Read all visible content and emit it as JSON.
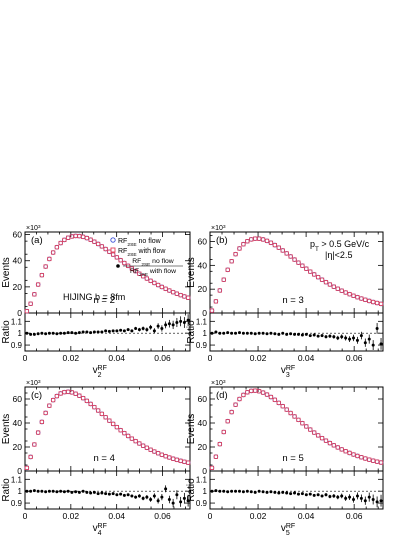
{
  "chart_data": [
    {
      "type": "scatter",
      "panel_label": "(a)",
      "n_label": "n = 2",
      "annotation": "HIJING b = 8fm",
      "legend": {
        "rf2se_noflow": "RF",
        "rf2se_noflow_sub": "2SE",
        "rf2se_noflow_tail": " no flow",
        "rf2se_withflow": "RF",
        "rf2se_withflow_sub": "2SE",
        "rf2se_withflow_tail": " with flow",
        "ratio_entry_top_main": "RF",
        "ratio_entry_top_sub": "2SE",
        "ratio_entry_top_tail": " no flow",
        "ratio_entry_bottom_main": "RF",
        "ratio_entry_bottom_sub": "2SE",
        "ratio_entry_bottom_tail": " with flow"
      },
      "xlabel_main": "v",
      "xlabel_sub": "2",
      "xlabel_sup": "RF",
      "ylabel": "Events",
      "ratio_ylabel": "Ratio",
      "y_multiplier": "×10",
      "y_multiplier_exp": "3",
      "xlim": [
        0,
        0.072
      ],
      "ylim": [
        0,
        62000
      ],
      "ratio_ylim": [
        0.85,
        1.17
      ],
      "x_ticks": [
        "0",
        "0.02",
        "0.04",
        "0.06"
      ],
      "y_ticks": [
        "0",
        "20",
        "40",
        "60"
      ],
      "ratio_ticks": [
        "0.9",
        "1",
        "1.1"
      ],
      "peak_x": 0.0225,
      "peak_y": 59000,
      "dist_k": 1.6,
      "ratio_values": [
        1.0,
        0.99,
        0.99,
        0.995,
        1.0,
        0.995,
        1.0,
        1.0,
        0.995,
        1.0,
        1.0,
        1.005,
        1.005,
        1.0,
        1.005,
        1.01,
        1.01,
        1.005,
        1.01,
        1.01,
        1.01,
        1.02,
        1.015,
        1.02,
        1.02,
        1.025,
        1.02,
        1.03,
        1.02,
        1.04,
        1.03,
        1.04,
        1.03,
        1.05,
        1.02,
        1.06,
        1.04,
        1.07,
        1.08,
        1.07,
        1.09,
        1.1,
        1.09,
        1.11
      ]
    },
    {
      "type": "scatter",
      "panel_label": "(b)",
      "n_label": "n = 3",
      "cut_line1_main": "p",
      "cut_line1_sub": "T",
      "cut_line1_tail": " > 0.5 GeV/c",
      "cut_line2": "|η|<2.5",
      "xlabel_main": "v",
      "xlabel_sub": "3",
      "xlabel_sup": "RF",
      "ylabel": "Events",
      "ratio_ylabel": "Ratio",
      "y_multiplier": "×10",
      "y_multiplier_exp": "3",
      "xlim": [
        0,
        0.072
      ],
      "ylim": [
        0,
        68000
      ],
      "ratio_ylim": [
        0.85,
        1.17
      ],
      "x_ticks": [
        "0",
        "0.02",
        "0.04",
        "0.06"
      ],
      "y_ticks": [
        "0",
        "20",
        "40",
        "60"
      ],
      "ratio_ticks": [
        "0.9",
        "1",
        "1.1"
      ],
      "peak_x": 0.0195,
      "peak_y": 62500,
      "dist_k": 1.55,
      "ratio_values": [
        1.0,
        1.01,
        1.0,
        1.0,
        1.005,
        1.0,
        1.0,
        1.005,
        1.0,
        1.0,
        1.0,
        0.995,
        1.0,
        1.0,
        0.995,
        1.0,
        0.995,
        0.99,
        1.0,
        0.99,
        0.995,
        0.99,
        0.99,
        0.985,
        0.99,
        0.98,
        0.985,
        0.975,
        0.98,
        0.97,
        0.975,
        0.97,
        0.96,
        0.97,
        0.96,
        0.95,
        0.96,
        0.94,
        0.98,
        0.92,
        0.95,
        0.9,
        1.04,
        0.91
      ]
    },
    {
      "type": "scatter",
      "panel_label": "(c)",
      "n_label": "n = 4",
      "xlabel_main": "v",
      "xlabel_sub": "4",
      "xlabel_sup": "RF",
      "ylabel": "Events",
      "ratio_ylabel": "Ratio",
      "y_multiplier": "×10",
      "y_multiplier_exp": "3",
      "xlim": [
        0,
        0.072
      ],
      "ylim": [
        0,
        70000
      ],
      "ratio_ylim": [
        0.85,
        1.17
      ],
      "x_ticks": [
        "0",
        "0.02",
        "0.04",
        "0.06"
      ],
      "y_ticks": [
        "0",
        "20",
        "40",
        "60"
      ],
      "ratio_ticks": [
        "0.9",
        "1",
        "1.1"
      ],
      "peak_x": 0.0185,
      "peak_y": 66000,
      "dist_k": 1.5,
      "ratio_values": [
        1.0,
        1.0,
        1.005,
        1.0,
        1.0,
        0.995,
        1.0,
        1.0,
        0.995,
        1.0,
        0.995,
        1.0,
        0.99,
        0.995,
        0.99,
        1.0,
        0.99,
        0.985,
        0.99,
        0.98,
        0.985,
        0.98,
        0.975,
        0.98,
        0.97,
        0.975,
        0.965,
        0.97,
        0.96,
        0.95,
        0.96,
        0.94,
        0.95,
        0.93,
        0.96,
        0.92,
        0.95,
        1.02,
        0.93,
        0.9,
        0.97,
        0.91,
        0.94,
        0.92
      ]
    },
    {
      "type": "scatter",
      "panel_label": "(d)",
      "n_label": "n = 5",
      "xlabel_main": "v",
      "xlabel_sub": "5",
      "xlabel_sup": "RF",
      "ylabel": "Events",
      "ratio_ylabel": "Ratio",
      "y_multiplier": "×10",
      "y_multiplier_exp": "3",
      "xlim": [
        0,
        0.072
      ],
      "ylim": [
        0,
        70000
      ],
      "ratio_ylim": [
        0.85,
        1.17
      ],
      "x_ticks": [
        "0",
        "0.02",
        "0.04",
        "0.06"
      ],
      "y_ticks": [
        "0",
        "20",
        "40",
        "60"
      ],
      "ratio_ticks": [
        "0.9",
        "1",
        "1.1"
      ],
      "peak_x": 0.0185,
      "peak_y": 67000,
      "dist_k": 1.5,
      "ratio_values": [
        1.0,
        1.005,
        1.0,
        1.0,
        0.995,
        1.0,
        1.0,
        1.0,
        0.995,
        1.0,
        0.995,
        0.99,
        1.0,
        0.995,
        0.99,
        0.995,
        0.99,
        0.985,
        0.99,
        0.985,
        0.98,
        0.985,
        0.975,
        0.98,
        0.97,
        0.975,
        0.965,
        0.97,
        0.96,
        0.97,
        0.955,
        0.96,
        0.95,
        0.96,
        0.94,
        0.95,
        0.93,
        0.96,
        0.94,
        0.92,
        0.95,
        0.93,
        0.91,
        0.92
      ]
    }
  ],
  "colors": {
    "no_flow": "#3a4fd6",
    "with_flow": "#e0405a",
    "ratio_points": "#000000",
    "reference_line": "#000000"
  }
}
